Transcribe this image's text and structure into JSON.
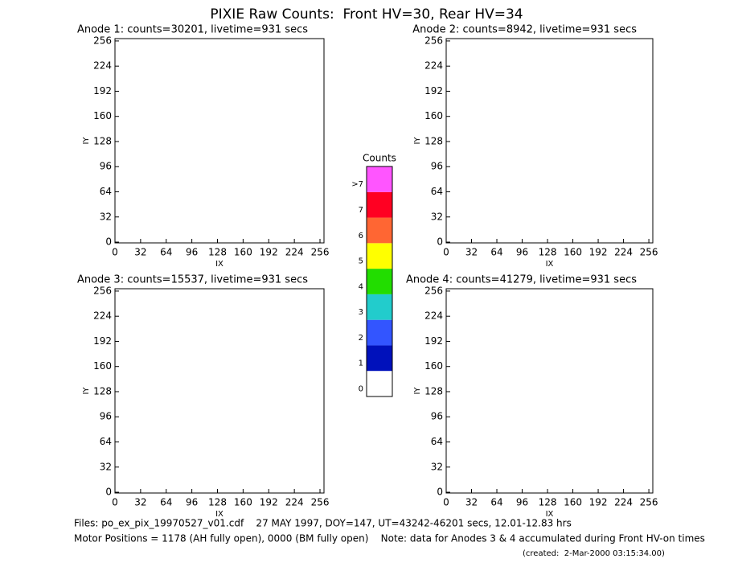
{
  "title": "PIXIE Raw Counts:  Front HV=30, Rear HV=34",
  "chart_data": [
    {
      "type": "heatmap",
      "title": "Anode 1: counts=30201, livetime=931 secs",
      "xlabel": "IX",
      "ylabel": "IY",
      "xlim": [
        0,
        261
      ],
      "ylim": [
        -1,
        259
      ],
      "xticks": [
        0,
        32,
        64,
        96,
        128,
        160,
        192,
        224,
        256
      ],
      "yticks": [
        0,
        32,
        64,
        96,
        128,
        160,
        192,
        224,
        256
      ]
    },
    {
      "type": "heatmap",
      "title": "Anode 2: counts=8942, livetime=931 secs",
      "xlabel": "IX",
      "ylabel": "IY",
      "xlim": [
        0,
        261
      ],
      "ylim": [
        -1,
        259
      ],
      "xticks": [
        0,
        32,
        64,
        96,
        128,
        160,
        192,
        224,
        256
      ],
      "yticks": [
        0,
        32,
        64,
        96,
        128,
        160,
        192,
        224,
        256
      ]
    },
    {
      "type": "heatmap",
      "title": "Anode 3: counts=15537, livetime=931 secs",
      "xlabel": "IX",
      "ylabel": "IY",
      "xlim": [
        0,
        261
      ],
      "ylim": [
        -1,
        259
      ],
      "xticks": [
        0,
        32,
        64,
        96,
        128,
        160,
        192,
        224,
        256
      ],
      "yticks": [
        0,
        32,
        64,
        96,
        128,
        160,
        192,
        224,
        256
      ]
    },
    {
      "type": "heatmap",
      "title": "Anode 4: counts=41279, livetime=931 secs",
      "xlabel": "IX",
      "ylabel": "IY",
      "xlim": [
        0,
        261
      ],
      "ylim": [
        -1,
        259
      ],
      "xticks": [
        0,
        32,
        64,
        96,
        128,
        160,
        192,
        224,
        256
      ],
      "yticks": [
        0,
        32,
        64,
        96,
        128,
        160,
        192,
        224,
        256
      ]
    }
  ],
  "colorbar": {
    "title": "Counts",
    "levels": [
      0,
      1,
      2,
      3,
      4,
      5,
      6,
      7,
      ">7"
    ],
    "colors": [
      "#ffffff",
      "#0011bb",
      "#3355ff",
      "#22cccc",
      "#22dd00",
      "#ffff00",
      "#ff6633",
      "#ff0022",
      "#ff55ff"
    ]
  },
  "footer": [
    "Files: po_ex_pix_19970527_v01.cdf    27 MAY 1997, DOY=147, UT=43242-46201 secs, 12.01-12.83 hrs",
    "Motor Positions = 1178 (AH fully open), 0000 (BM fully open)    Note: data for Anodes 3 & 4 accumulated during Front HV-on times",
    "(created:  2-Mar-2000 03:15:34.00)"
  ]
}
